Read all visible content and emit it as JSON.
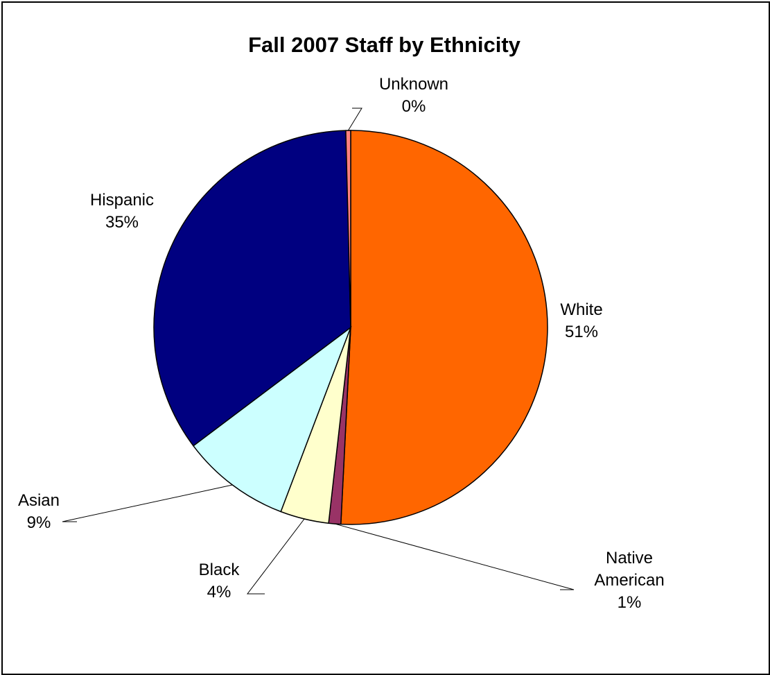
{
  "chart_data": {
    "type": "pie",
    "title": "Fall 2007 Staff by Ethnicity",
    "slices": [
      {
        "label": "White",
        "value": 51,
        "percent_label": "51%",
        "color": "#FF6600"
      },
      {
        "label": "Native American",
        "value": 1,
        "percent_label": "1%",
        "color": "#993366"
      },
      {
        "label": "Black",
        "value": 4,
        "percent_label": "4%",
        "color": "#FFFFCC"
      },
      {
        "label": "Asian",
        "value": 9,
        "percent_label": "9%",
        "color": "#CCFFFF"
      },
      {
        "label": "Hispanic",
        "value": 35,
        "percent_label": "35%",
        "color": "#000080"
      },
      {
        "label": "Unknown",
        "value": 0.4,
        "percent_label": "0%",
        "color": "#FF8080"
      }
    ]
  }
}
